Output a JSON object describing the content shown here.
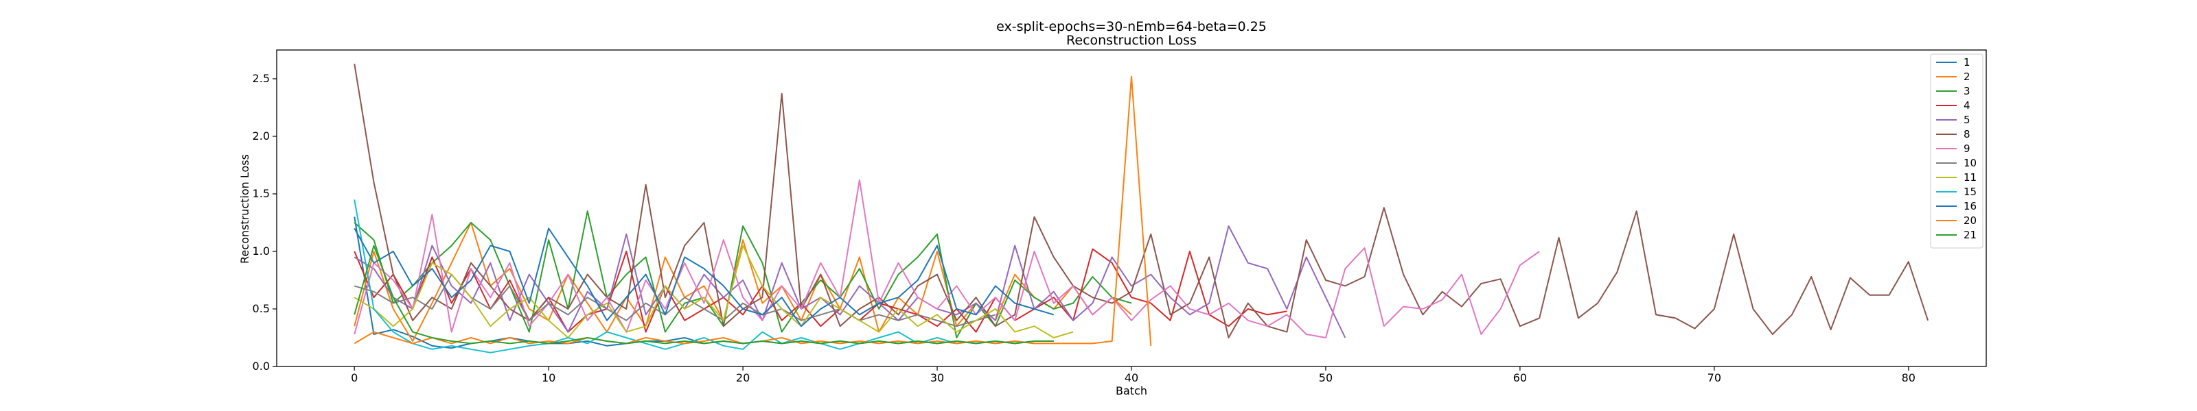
{
  "chart_data": {
    "type": "line",
    "title": "ex-split-epochs=30-nEmb=64-beta=0.25",
    "subtitle": "Reconstruction Loss",
    "xlabel": "Batch",
    "ylabel": "Reconstruction Loss",
    "xlim": [
      -4,
      84
    ],
    "ylim": [
      0,
      2.75
    ],
    "xticks": [
      "0",
      "10",
      "20",
      "30",
      "40",
      "50",
      "60",
      "70",
      "80"
    ],
    "yticks": [
      "0.0",
      "0.5",
      "1.0",
      "1.5",
      "2.0",
      "2.5"
    ],
    "grid": false,
    "legend_position": "top-right",
    "series": [
      {
        "name": "1",
        "color": "#1f77b4",
        "values": [
          1.3,
          0.28,
          0.32,
          0.26,
          0.18,
          0.16,
          0.2,
          0.22,
          0.25,
          0.22,
          0.2,
          0.2,
          0.22,
          0.18,
          0.2,
          0.22,
          0.22,
          0.25,
          0.2,
          0.22,
          0.2,
          0.22,
          0.2,
          0.22,
          0.2,
          0.22,
          0.2,
          0.22,
          0.2,
          0.22,
          0.2,
          0.22,
          0.2,
          0.22,
          0.2,
          0.22,
          0.22
        ]
      },
      {
        "name": "2",
        "color": "#ff7f0e",
        "values": [
          0.35,
          1.0,
          0.5,
          0.22,
          0.55,
          0.9,
          1.25,
          0.7,
          0.85,
          0.5,
          0.4,
          0.8,
          0.55,
          0.3,
          0.6,
          0.35,
          0.95,
          0.6,
          0.7,
          0.4,
          1.1,
          0.55,
          0.7,
          0.4,
          0.8,
          0.5,
          0.95,
          0.3,
          0.6,
          0.45,
          1.0,
          0.35,
          0.55,
          0.4,
          0.8,
          0.6,
          0.5,
          0.7,
          0.45,
          0.6,
          0.45
        ]
      },
      {
        "name": "3",
        "color": "#2ca02c",
        "values": [
          1.25,
          1.1,
          0.55,
          0.7,
          0.9,
          1.05,
          1.25,
          1.1,
          0.7,
          0.3,
          1.1,
          0.5,
          1.35,
          0.6,
          0.8,
          0.95,
          0.3,
          0.55,
          0.6,
          0.35,
          1.22,
          0.9,
          0.3,
          0.55,
          0.75,
          0.6,
          0.85,
          0.5,
          0.8,
          0.95,
          1.15,
          0.25,
          0.55,
          0.35,
          0.75,
          0.6,
          0.5,
          0.55,
          0.78,
          0.6,
          0.55
        ]
      },
      {
        "name": "4",
        "color": "#d62728",
        "values": [
          1.0,
          0.6,
          0.8,
          0.5,
          0.95,
          0.55,
          0.85,
          0.5,
          0.75,
          0.4,
          0.6,
          0.3,
          0.45,
          0.5,
          1.0,
          0.3,
          0.7,
          0.4,
          0.5,
          0.6,
          0.45,
          0.7,
          0.4,
          0.55,
          0.35,
          0.5,
          0.4,
          0.55,
          0.5,
          0.45,
          0.35,
          0.5,
          0.3,
          0.6,
          0.4,
          0.5,
          0.6,
          0.4,
          1.02,
          0.9,
          0.6,
          0.55,
          0.4,
          1.0,
          0.45,
          0.35,
          0.5,
          0.45,
          0.48
        ]
      },
      {
        "name": "5",
        "color": "#9467bd",
        "values": [
          0.95,
          0.85,
          0.6,
          0.5,
          1.05,
          0.7,
          0.55,
          0.9,
          0.4,
          0.8,
          0.55,
          0.3,
          0.65,
          0.5,
          1.15,
          0.45,
          0.7,
          0.5,
          0.8,
          0.6,
          0.75,
          0.4,
          0.9,
          0.5,
          0.6,
          0.45,
          0.7,
          0.55,
          0.4,
          0.6,
          0.5,
          0.45,
          0.55,
          0.4,
          1.05,
          0.5,
          0.65,
          0.4,
          0.55,
          0.95,
          0.7,
          0.8,
          0.6,
          0.45,
          0.55,
          1.22,
          0.9,
          0.85,
          0.5,
          0.95,
          0.6,
          0.25
        ]
      },
      {
        "name": "8",
        "color": "#8c564b",
        "values": [
          2.63,
          1.6,
          0.8,
          0.4,
          0.6,
          0.5,
          0.9,
          0.7,
          0.5,
          0.4,
          0.6,
          0.5,
          0.8,
          0.6,
          0.5,
          1.58,
          0.6,
          1.05,
          1.25,
          0.35,
          0.5,
          0.6,
          2.37,
          0.5,
          0.8,
          0.35,
          0.5,
          0.6,
          0.45,
          0.7,
          0.8,
          0.4,
          0.6,
          0.35,
          0.45,
          1.3,
          0.95,
          0.7,
          0.6,
          0.55,
          0.65,
          1.15,
          0.45,
          0.55,
          0.95,
          0.25,
          0.55,
          0.35,
          0.3,
          1.1,
          0.75,
          0.7,
          0.78,
          1.38,
          0.8,
          0.45,
          0.65,
          0.52,
          0.72,
          0.76,
          0.35,
          0.42,
          1.12,
          0.42,
          0.55,
          0.82,
          1.35,
          0.45,
          0.42,
          0.33,
          0.5,
          1.15,
          0.5,
          0.28,
          0.45,
          0.78,
          0.32,
          0.77,
          0.62,
          0.62,
          0.91,
          0.4
        ]
      },
      {
        "name": "9",
        "color": "#e377c2",
        "values": [
          0.28,
          0.9,
          0.75,
          0.5,
          1.32,
          0.3,
          0.85,
          0.6,
          0.9,
          0.35,
          0.55,
          0.8,
          0.4,
          0.6,
          0.3,
          0.75,
          0.5,
          0.9,
          0.55,
          1.1,
          0.6,
          0.4,
          0.7,
          0.5,
          0.9,
          0.6,
          1.62,
          0.55,
          0.9,
          0.6,
          0.5,
          0.7,
          0.45,
          0.6,
          0.4,
          1.0,
          0.55,
          0.7,
          0.45,
          0.6,
          0.4,
          0.58,
          0.7,
          0.5,
          0.45,
          0.55,
          0.4,
          0.35,
          0.45,
          0.28,
          0.25,
          0.85,
          1.03,
          0.35,
          0.52,
          0.5,
          0.58,
          0.8,
          0.28,
          0.5,
          0.88,
          1.0
        ]
      },
      {
        "name": "10",
        "color": "#7f7f7f",
        "values": [
          0.7,
          0.65,
          0.55,
          0.6,
          0.5,
          0.8,
          0.6,
          0.5,
          0.7,
          0.4,
          0.55,
          0.45,
          0.6,
          0.5,
          0.4,
          0.55,
          0.45,
          0.6,
          0.5,
          0.4,
          0.55,
          0.45,
          0.5,
          0.4,
          0.45,
          0.5,
          0.4,
          0.45,
          0.4,
          0.45,
          0.4,
          0.35,
          0.4,
          0.45
        ]
      },
      {
        "name": "11",
        "color": "#bcbd22",
        "values": [
          0.6,
          0.5,
          0.35,
          0.5,
          0.9,
          0.8,
          0.6,
          0.35,
          0.5,
          0.6,
          0.4,
          0.25,
          0.45,
          0.55,
          0.3,
          0.35,
          0.7,
          0.5,
          0.6,
          0.4,
          1.05,
          0.7,
          0.5,
          0.35,
          0.6,
          0.5,
          0.4,
          0.3,
          0.5,
          0.35,
          0.45,
          0.3,
          0.4,
          0.5,
          0.3,
          0.35,
          0.25,
          0.3
        ]
      },
      {
        "name": "15",
        "color": "#17becf",
        "values": [
          1.45,
          0.5,
          0.3,
          0.2,
          0.15,
          0.18,
          0.15,
          0.12,
          0.15,
          0.18,
          0.2,
          0.25,
          0.2,
          0.3,
          0.25,
          0.2,
          0.15,
          0.2,
          0.25,
          0.18,
          0.15,
          0.3,
          0.2,
          0.25,
          0.2,
          0.15,
          0.2,
          0.25,
          0.3,
          0.2,
          0.25,
          0.2,
          0.22,
          0.2,
          0.22,
          0.2
        ]
      },
      {
        "name": "16",
        "color": "#1f77b4",
        "values": [
          1.2,
          0.9,
          1.0,
          0.7,
          0.85,
          0.6,
          0.75,
          1.05,
          1.0,
          0.55,
          1.2,
          0.95,
          0.7,
          0.4,
          0.6,
          0.8,
          0.45,
          0.95,
          0.85,
          0.7,
          0.5,
          0.45,
          0.6,
          0.35,
          0.5,
          0.6,
          0.45,
          0.55,
          0.6,
          0.75,
          1.05,
          0.5,
          0.45,
          0.7,
          0.55,
          0.5,
          0.45
        ]
      },
      {
        "name": "20",
        "color": "#ff7f0e",
        "values": [
          0.2,
          0.3,
          0.25,
          0.2,
          0.25,
          0.2,
          0.25,
          0.2,
          0.25,
          0.2,
          0.22,
          0.2,
          0.25,
          0.22,
          0.2,
          0.25,
          0.22,
          0.2,
          0.22,
          0.25,
          0.2,
          0.22,
          0.25,
          0.2,
          0.22,
          0.2,
          0.22,
          0.2,
          0.22,
          0.2,
          0.22,
          0.2,
          0.22,
          0.2,
          0.22,
          0.2,
          0.2,
          0.2,
          0.2,
          0.22,
          2.52,
          0.18
        ]
      },
      {
        "name": "21",
        "color": "#2ca02c",
        "values": [
          0.45,
          1.05,
          0.6,
          0.3,
          0.25,
          0.22,
          0.2,
          0.22,
          0.2,
          0.22,
          0.2,
          0.22,
          0.25,
          0.22,
          0.2,
          0.22,
          0.2,
          0.22,
          0.2,
          0.22,
          0.2,
          0.22,
          0.2,
          0.22,
          0.2,
          0.22,
          0.2,
          0.22,
          0.2,
          0.22,
          0.2,
          0.22,
          0.2,
          0.22,
          0.2,
          0.22,
          0.22
        ]
      }
    ]
  }
}
